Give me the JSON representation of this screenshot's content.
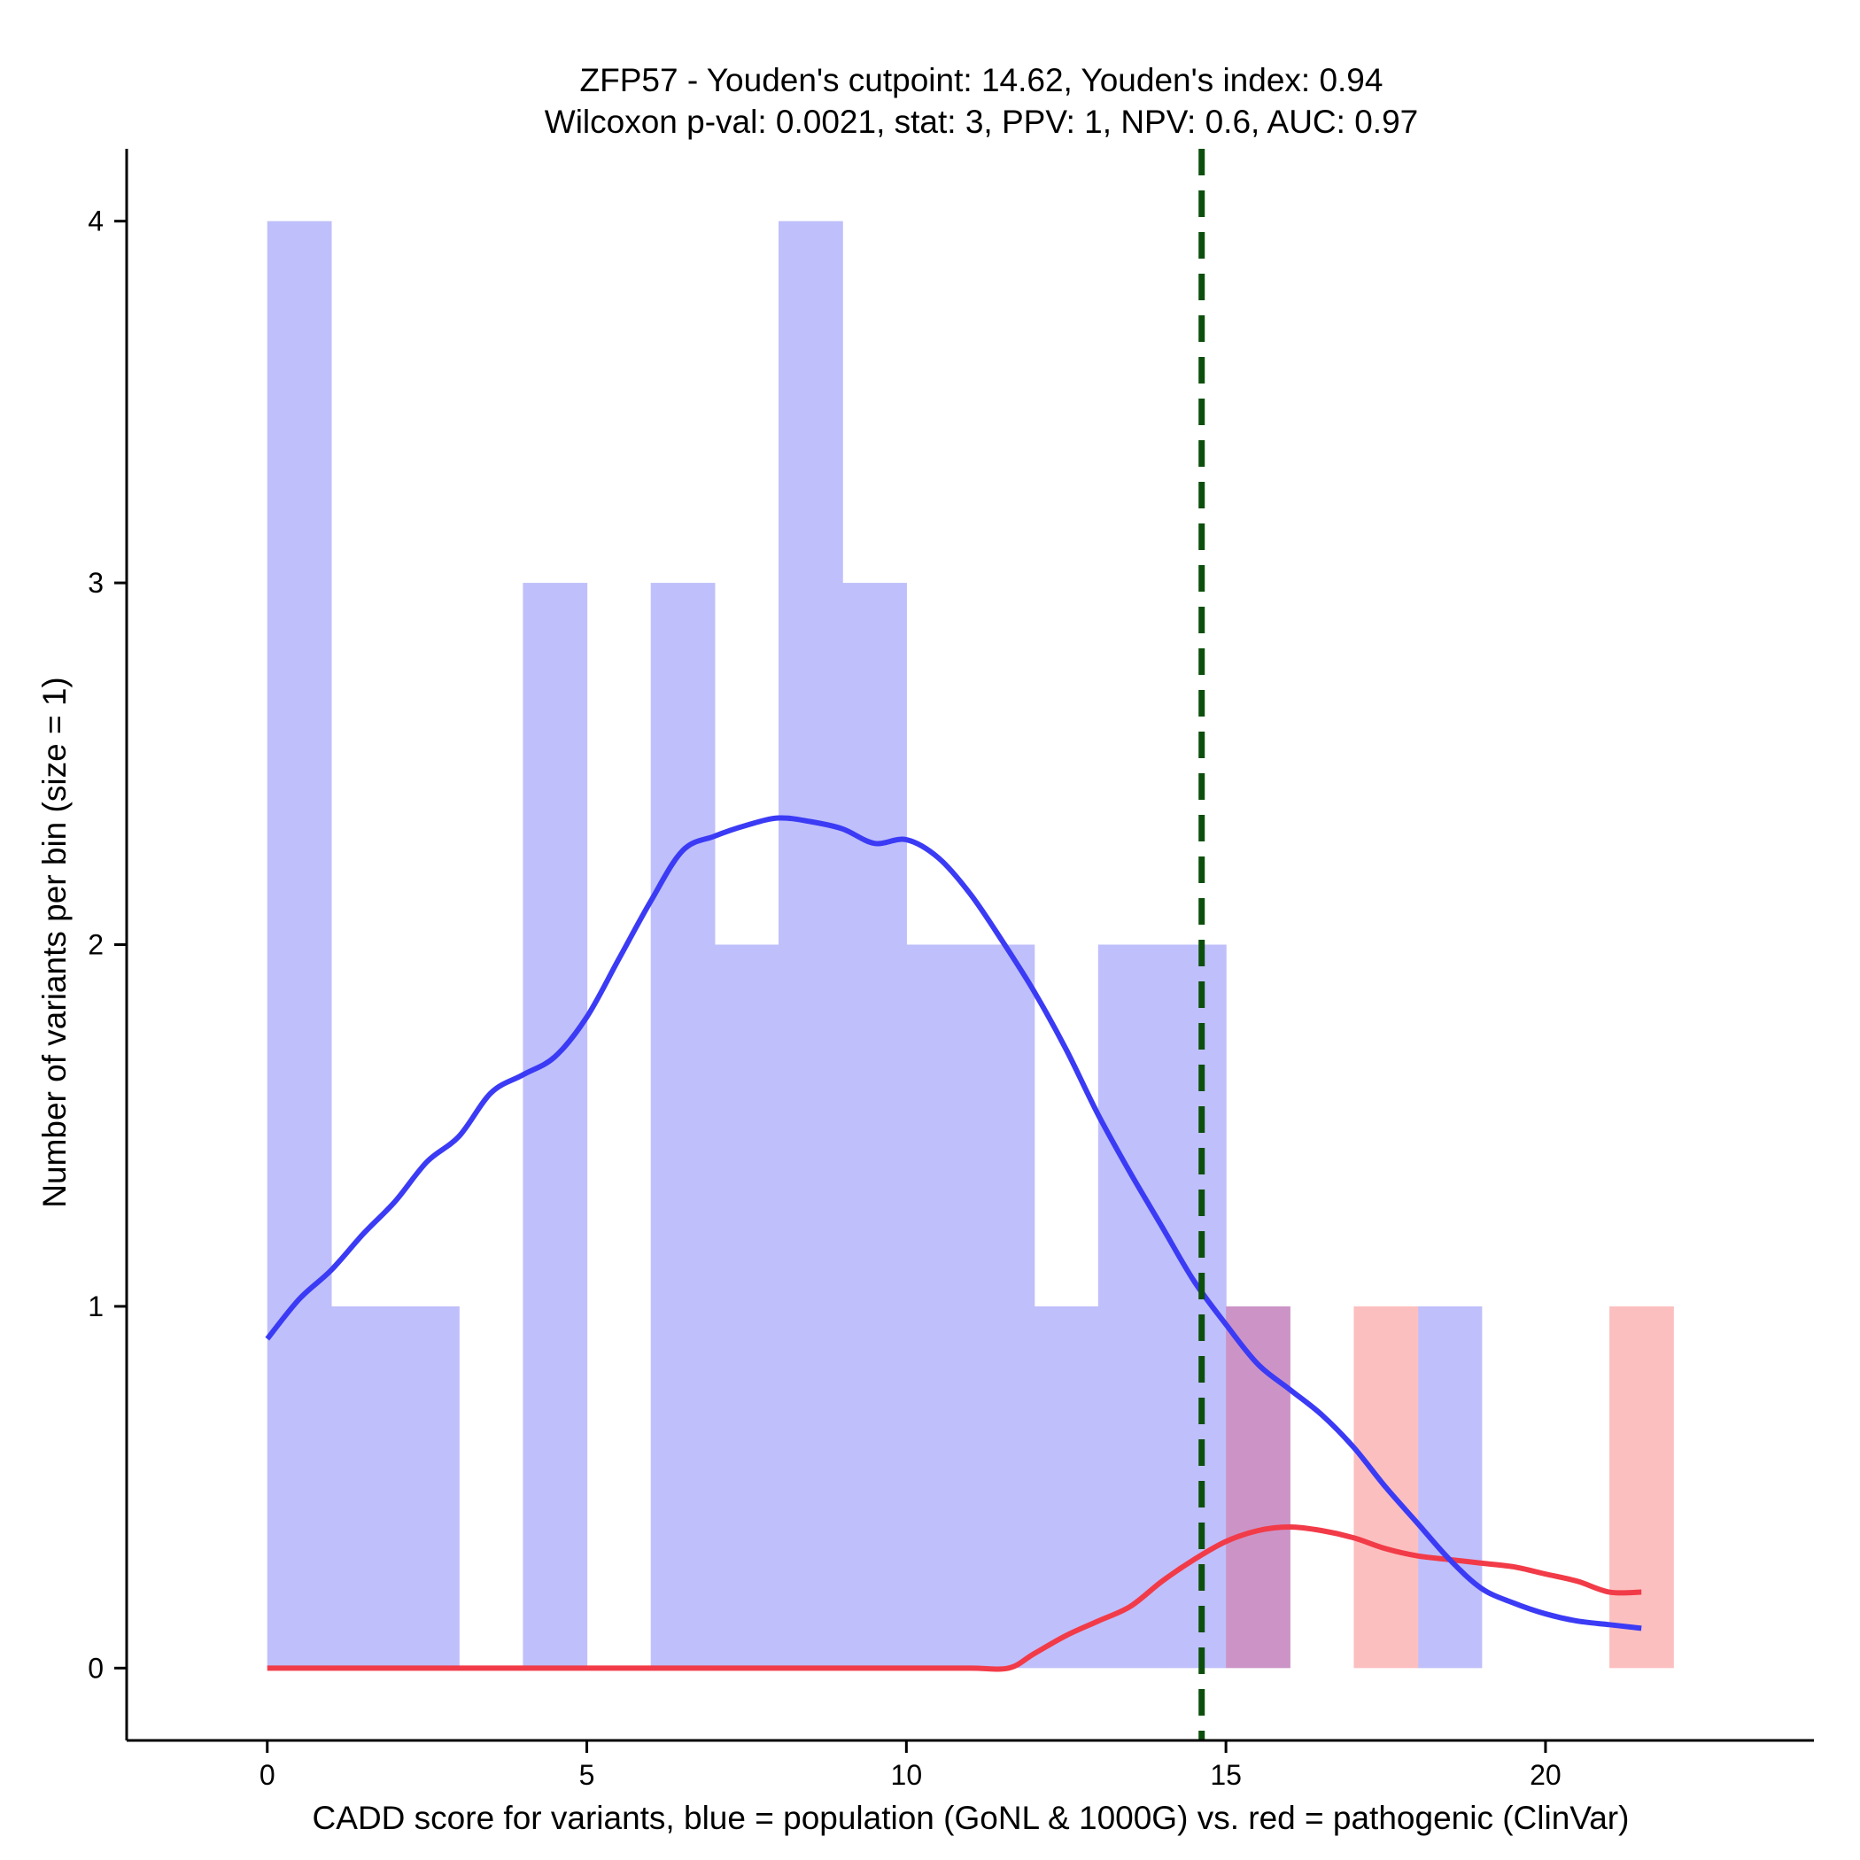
{
  "chart_data": {
    "type": "histogram",
    "title_line1": "ZFP57 - Youden's cutpoint: 14.62, Youden's index: 0.94",
    "title_line2": "Wilcoxon p-val: 0.0021, stat: 3, PPV: 1, NPV: 0.6, AUC: 0.97",
    "xlabel": "CADD score for variants, blue = population (GoNL & 1000G) vs. red = pathogenic (ClinVar)",
    "ylabel": "Number of variants per bin (size = 1)",
    "xlim": [
      -2.2,
      24.2
    ],
    "ylim": [
      -0.2,
      4.2
    ],
    "x_ticks": [
      0,
      5,
      10,
      15,
      20
    ],
    "y_ticks": [
      0,
      1,
      2,
      3,
      4
    ],
    "bin_size": 1,
    "cutpoint": 14.62,
    "colors": {
      "population_bar": "#bfbffb",
      "pathogenic_bar": "#fcbfbf",
      "overlap_bar": "#cc94c6",
      "population_density": "#3b3bf5",
      "pathogenic_density": "#f23b48",
      "cutpoint_line": "#0c4f0c"
    },
    "series": [
      {
        "name": "population",
        "bins": [
          {
            "x0": 0,
            "x1": 1,
            "count": 4
          },
          {
            "x0": 1,
            "x1": 2,
            "count": 1
          },
          {
            "x0": 2,
            "x1": 3,
            "count": 1
          },
          {
            "x0": 4,
            "x1": 5,
            "count": 3
          },
          {
            "x0": 6,
            "x1": 7,
            "count": 3
          },
          {
            "x0": 7,
            "x1": 8,
            "count": 2
          },
          {
            "x0": 8,
            "x1": 9,
            "count": 4
          },
          {
            "x0": 9,
            "x1": 10,
            "count": 3
          },
          {
            "x0": 10,
            "x1": 11,
            "count": 2
          },
          {
            "x0": 11,
            "x1": 12,
            "count": 2
          },
          {
            "x0": 12,
            "x1": 13,
            "count": 1
          },
          {
            "x0": 13,
            "x1": 14,
            "count": 2
          },
          {
            "x0": 14,
            "x1": 15,
            "count": 2
          },
          {
            "x0": 15,
            "x1": 16,
            "count": 1
          },
          {
            "x0": 18,
            "x1": 19,
            "count": 1
          }
        ],
        "density_curve": {
          "x": [
            0,
            0.5,
            1,
            1.5,
            2,
            2.5,
            3,
            3.5,
            4,
            4.5,
            5,
            5.5,
            6,
            6.5,
            7,
            7.5,
            8,
            8.5,
            9,
            9.5,
            10,
            10.5,
            11,
            11.5,
            12,
            12.5,
            13,
            13.5,
            14,
            14.5,
            15,
            15.5,
            16,
            16.5,
            17,
            17.5,
            18,
            18.5,
            19,
            19.5,
            20,
            20.5,
            21,
            21.5
          ],
          "y": [
            0.91,
            1.02,
            1.1,
            1.2,
            1.29,
            1.4,
            1.47,
            1.59,
            1.64,
            1.69,
            1.8,
            1.96,
            2.12,
            2.26,
            2.3,
            2.33,
            2.35,
            2.34,
            2.32,
            2.28,
            2.29,
            2.24,
            2.14,
            2.01,
            1.87,
            1.71,
            1.53,
            1.37,
            1.22,
            1.07,
            0.95,
            0.84,
            0.77,
            0.7,
            0.61,
            0.5,
            0.4,
            0.3,
            0.22,
            0.18,
            0.15,
            0.13,
            0.12,
            0.11
          ]
        }
      },
      {
        "name": "pathogenic",
        "bins": [
          {
            "x0": 15,
            "x1": 16,
            "count": 1
          },
          {
            "x0": 17,
            "x1": 18,
            "count": 1
          },
          {
            "x0": 21,
            "x1": 22,
            "count": 1
          }
        ],
        "density_curve": {
          "x": [
            0,
            1,
            2,
            3,
            4,
            5,
            6,
            7,
            8,
            9,
            10,
            11,
            11.6,
            12,
            12.5,
            13,
            13.5,
            14,
            14.5,
            15,
            15.5,
            16,
            16.5,
            17,
            17.5,
            18,
            18.5,
            19,
            19.5,
            20,
            20.5,
            21,
            21.5
          ],
          "y": [
            0,
            0,
            0,
            0,
            0,
            0,
            0,
            0,
            0,
            0,
            0,
            0,
            0,
            0.04,
            0.09,
            0.13,
            0.17,
            0.24,
            0.3,
            0.35,
            0.38,
            0.39,
            0.38,
            0.36,
            0.33,
            0.31,
            0.3,
            0.29,
            0.28,
            0.26,
            0.24,
            0.21,
            0.21
          ]
        }
      }
    ]
  }
}
